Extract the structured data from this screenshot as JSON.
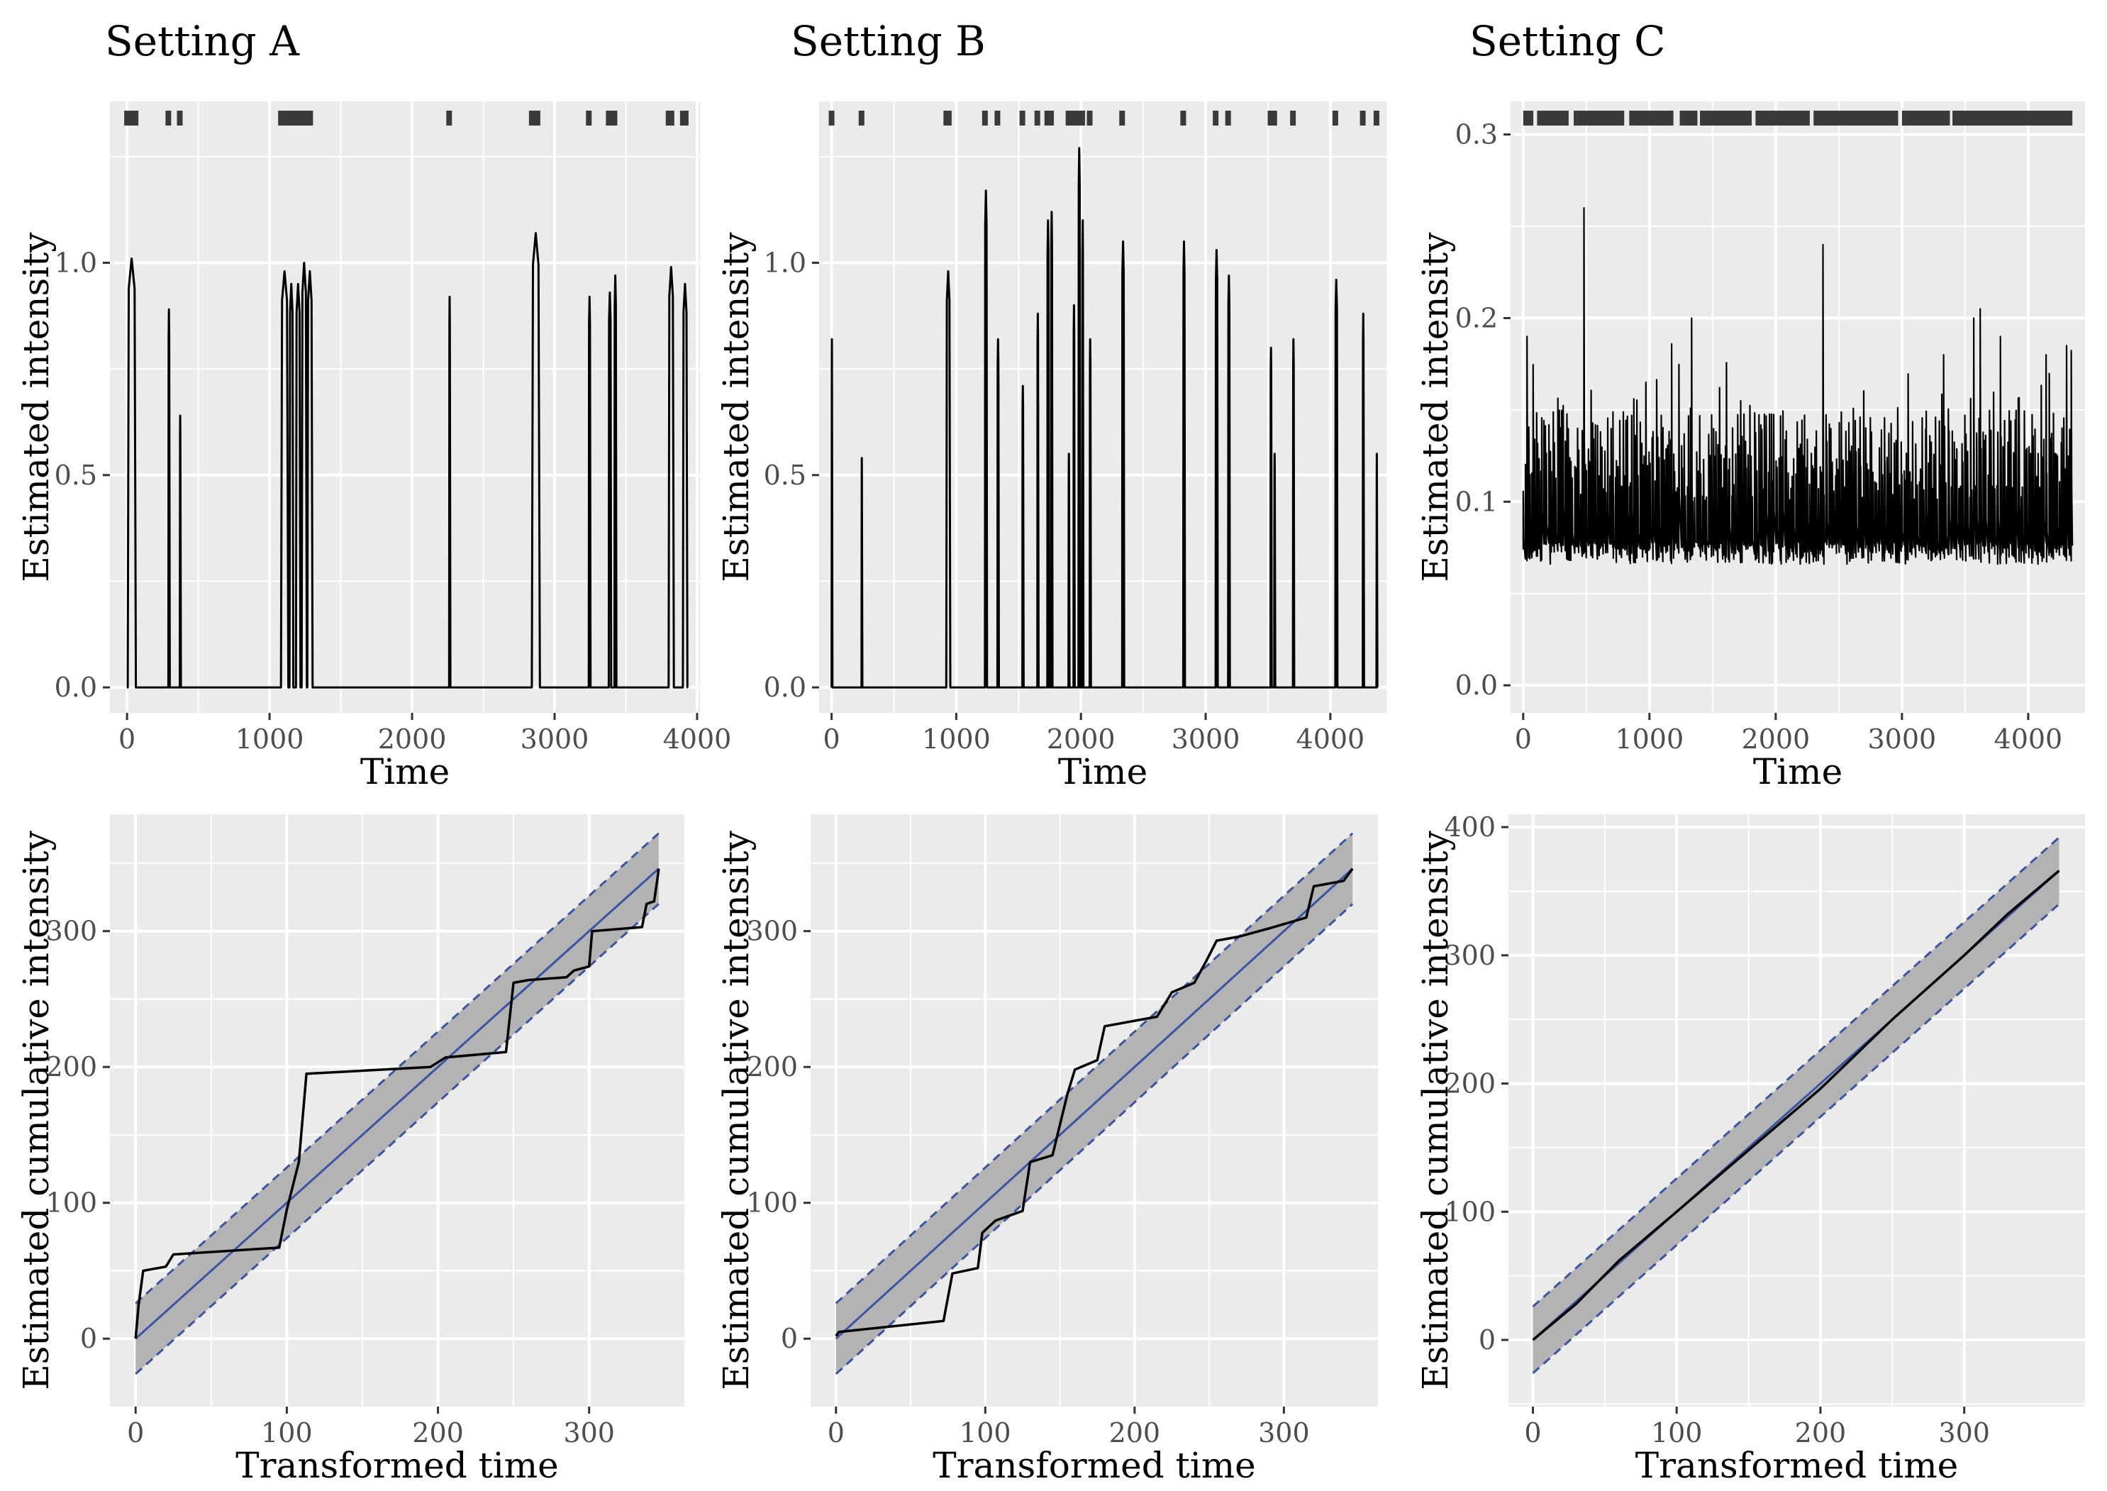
{
  "chart_data": [
    {
      "id": "A-intensity",
      "panel_title": "Setting A",
      "type": "line",
      "xlabel": "Time",
      "ylabel": "Estimated intensity",
      "xlim": [
        -120,
        4020
      ],
      "ylim": [
        -0.06,
        1.38
      ],
      "xticks": [
        0,
        1000,
        2000,
        3000,
        4000
      ],
      "xtick_labels": [
        "0",
        "1000",
        "2000",
        "3000",
        "4000"
      ],
      "yticks": [
        0,
        0.5,
        1.0
      ],
      "ytick_labels": [
        "0.0",
        "0.5",
        "1.0"
      ],
      "baseline": 0.0,
      "spikes": [
        {
          "t": 5,
          "w": 45,
          "h": 1.01,
          "dur": 55
        },
        {
          "t": 290,
          "w": 8,
          "h": 0.89,
          "dur": 8
        },
        {
          "t": 370,
          "w": 6,
          "h": 0.64,
          "dur": 6
        },
        {
          "t": 1080,
          "w": 50,
          "h": 0.98,
          "dur": 50
        },
        {
          "t": 1140,
          "w": 25,
          "h": 0.95,
          "dur": 25
        },
        {
          "t": 1185,
          "w": 30,
          "h": 0.95,
          "dur": 30
        },
        {
          "t": 1225,
          "w": 35,
          "h": 1.0,
          "dur": 35
        },
        {
          "t": 1265,
          "w": 35,
          "h": 0.98,
          "dur": 35
        },
        {
          "t": 2260,
          "w": 7,
          "h": 0.92,
          "dur": 7
        },
        {
          "t": 2840,
          "w": 55,
          "h": 1.07,
          "dur": 55
        },
        {
          "t": 3240,
          "w": 10,
          "h": 0.92,
          "dur": 10
        },
        {
          "t": 3380,
          "w": 15,
          "h": 0.93,
          "dur": 15
        },
        {
          "t": 3420,
          "w": 12,
          "h": 0.97,
          "dur": 12
        },
        {
          "t": 3800,
          "w": 35,
          "h": 0.99,
          "dur": 35
        },
        {
          "t": 3900,
          "w": 30,
          "h": 0.95,
          "dur": 30
        }
      ],
      "rug": [
        0,
        30,
        60,
        290,
        370,
        1080,
        1100,
        1120,
        1140,
        1160,
        1185,
        1205,
        1225,
        1245,
        1265,
        1285,
        2260,
        2840,
        2860,
        2880,
        3240,
        3380,
        3400,
        3420,
        3800,
        3820,
        3900,
        3920
      ]
    },
    {
      "id": "B-intensity",
      "panel_title": "Setting B",
      "type": "line",
      "xlabel": "Time",
      "ylabel": "Estimated intensity",
      "xlim": [
        -100,
        4450
      ],
      "ylim": [
        -0.06,
        1.38
      ],
      "xticks": [
        0,
        1000,
        2000,
        3000,
        4000
      ],
      "xtick_labels": [
        "0",
        "1000",
        "2000",
        "3000",
        "4000"
      ],
      "yticks": [
        0,
        0.5,
        1.0
      ],
      "ytick_labels": [
        "0.0",
        "0.5",
        "1.0"
      ],
      "baseline": 0.0,
      "spikes": [
        {
          "t": 0,
          "w": 5,
          "h": 0.82,
          "dur": 5
        },
        {
          "t": 240,
          "w": 5,
          "h": 0.54,
          "dur": 5
        },
        {
          "t": 920,
          "w": 30,
          "h": 0.98,
          "dur": 30
        },
        {
          "t": 1230,
          "w": 15,
          "h": 1.17,
          "dur": 15
        },
        {
          "t": 1330,
          "w": 10,
          "h": 0.82,
          "dur": 10
        },
        {
          "t": 1530,
          "w": 8,
          "h": 0.71,
          "dur": 8
        },
        {
          "t": 1650,
          "w": 8,
          "h": 0.88,
          "dur": 8
        },
        {
          "t": 1730,
          "w": 12,
          "h": 1.1,
          "dur": 12
        },
        {
          "t": 1760,
          "w": 10,
          "h": 1.12,
          "dur": 10
        },
        {
          "t": 1900,
          "w": 6,
          "h": 0.55,
          "dur": 6
        },
        {
          "t": 1940,
          "w": 8,
          "h": 0.9,
          "dur": 8
        },
        {
          "t": 1980,
          "w": 12,
          "h": 1.27,
          "dur": 12
        },
        {
          "t": 2010,
          "w": 8,
          "h": 1.1,
          "dur": 8
        },
        {
          "t": 2070,
          "w": 8,
          "h": 0.82,
          "dur": 8
        },
        {
          "t": 2330,
          "w": 15,
          "h": 1.05,
          "dur": 15
        },
        {
          "t": 2820,
          "w": 12,
          "h": 1.05,
          "dur": 12
        },
        {
          "t": 3080,
          "w": 15,
          "h": 1.03,
          "dur": 15
        },
        {
          "t": 3180,
          "w": 12,
          "h": 0.97,
          "dur": 12
        },
        {
          "t": 3520,
          "w": 8,
          "h": 0.8,
          "dur": 8
        },
        {
          "t": 3550,
          "w": 6,
          "h": 0.55,
          "dur": 6
        },
        {
          "t": 3700,
          "w": 8,
          "h": 0.82,
          "dur": 8
        },
        {
          "t": 4040,
          "w": 15,
          "h": 0.96,
          "dur": 15
        },
        {
          "t": 4260,
          "w": 8,
          "h": 0.88,
          "dur": 8
        },
        {
          "t": 4370,
          "w": 5,
          "h": 0.55,
          "dur": 5
        }
      ],
      "rug": [
        0,
        240,
        920,
        940,
        1230,
        1330,
        1530,
        1650,
        1730,
        1760,
        1900,
        1940,
        1980,
        2010,
        2070,
        2330,
        2820,
        3080,
        3180,
        3520,
        3550,
        3700,
        4040,
        4260,
        4370
      ]
    },
    {
      "id": "C-intensity",
      "panel_title": "Setting C",
      "type": "line",
      "xlabel": "Time",
      "ylabel": "Estimated intensity",
      "xlim": [
        -100,
        4450
      ],
      "ylim": [
        -0.015,
        0.318
      ],
      "xticks": [
        0,
        1000,
        2000,
        3000,
        4000
      ],
      "xtick_labels": [
        "0",
        "1000",
        "2000",
        "3000",
        "4000"
      ],
      "yticks": [
        0,
        0.1,
        0.2,
        0.3
      ],
      "ytick_labels": [
        "0.0",
        "0.1",
        "0.2",
        "0.3"
      ],
      "baseline": 0.066,
      "noise": {
        "start": 0,
        "end": 4350,
        "n_events": 360,
        "seed": 7
      },
      "peaks": [
        {
          "t": 30,
          "v": 0.19
        },
        {
          "t": 480,
          "v": 0.26
        },
        {
          "t": 1340,
          "v": 0.2
        },
        {
          "t": 2380,
          "v": 0.24
        },
        {
          "t": 3330,
          "v": 0.18
        },
        {
          "t": 3570,
          "v": 0.2
        },
        {
          "t": 3630,
          "v": 0.205
        },
        {
          "t": 3780,
          "v": 0.19
        },
        {
          "t": 4150,
          "v": 0.18
        },
        {
          "t": 4310,
          "v": 0.185
        }
      ],
      "rug_segments": [
        [
          0,
          80
        ],
        [
          110,
          360
        ],
        [
          400,
          800
        ],
        [
          840,
          1190
        ],
        [
          1240,
          1380
        ],
        [
          1400,
          1810
        ],
        [
          1840,
          2270
        ],
        [
          2300,
          2970
        ],
        [
          3000,
          3380
        ],
        [
          3400,
          4350
        ]
      ]
    },
    {
      "id": "A-cumulative",
      "type": "line",
      "xlabel": "Transformed time",
      "ylabel": "Estimated cumulative intensity",
      "xlim": [
        -17,
        363
      ],
      "ylim": [
        -50,
        386
      ],
      "xticks": [
        0,
        100,
        200,
        300
      ],
      "xtick_labels": [
        "0",
        "100",
        "200",
        "300"
      ],
      "yticks": [
        0,
        100,
        200,
        300
      ],
      "ytick_labels": [
        "0",
        "100",
        "200",
        "300"
      ],
      "x_max": 346,
      "band_halfwidth": 26,
      "points": [
        [
          0,
          0
        ],
        [
          2,
          25
        ],
        [
          5,
          50
        ],
        [
          20,
          53
        ],
        [
          25,
          62
        ],
        [
          95,
          67
        ],
        [
          100,
          95
        ],
        [
          108,
          130
        ],
        [
          113,
          195
        ],
        [
          195,
          200
        ],
        [
          205,
          207
        ],
        [
          245,
          211
        ],
        [
          250,
          262
        ],
        [
          260,
          264
        ],
        [
          285,
          266
        ],
        [
          290,
          271
        ],
        [
          300,
          274
        ],
        [
          302,
          300
        ],
        [
          335,
          303
        ],
        [
          338,
          320
        ],
        [
          343,
          322
        ],
        [
          345,
          337
        ],
        [
          346,
          346
        ]
      ]
    },
    {
      "id": "B-cumulative",
      "type": "line",
      "xlabel": "Transformed time",
      "ylabel": "Estimated cumulative intensity",
      "xlim": [
        -17,
        363
      ],
      "ylim": [
        -50,
        386
      ],
      "xticks": [
        0,
        100,
        200,
        300
      ],
      "xtick_labels": [
        "0",
        "100",
        "200",
        "300"
      ],
      "yticks": [
        0,
        100,
        200,
        300
      ],
      "ytick_labels": [
        "0",
        "100",
        "200",
        "300"
      ],
      "x_max": 346,
      "band_halfwidth": 26,
      "points": [
        [
          0,
          2
        ],
        [
          2,
          5
        ],
        [
          72,
          13
        ],
        [
          78,
          48
        ],
        [
          95,
          52
        ],
        [
          98,
          78
        ],
        [
          107,
          87
        ],
        [
          125,
          94
        ],
        [
          130,
          130
        ],
        [
          145,
          135
        ],
        [
          155,
          180
        ],
        [
          160,
          198
        ],
        [
          175,
          205
        ],
        [
          180,
          230
        ],
        [
          215,
          237
        ],
        [
          225,
          255
        ],
        [
          240,
          262
        ],
        [
          248,
          278
        ],
        [
          255,
          293
        ],
        [
          270,
          296
        ],
        [
          290,
          302
        ],
        [
          315,
          310
        ],
        [
          320,
          333
        ],
        [
          340,
          337
        ],
        [
          346,
          346
        ]
      ]
    },
    {
      "id": "C-cumulative",
      "type": "line",
      "xlabel": "Transformed time",
      "ylabel": "Estimated cumulative intensity",
      "xlim": [
        -17,
        384
      ],
      "ylim": [
        -52,
        410
      ],
      "xticks": [
        0,
        100,
        200,
        300
      ],
      "xtick_labels": [
        "0",
        "100",
        "200",
        "300"
      ],
      "yticks": [
        0,
        100,
        200,
        300,
        400
      ],
      "ytick_labels": [
        "0",
        "100",
        "200",
        "300",
        "400"
      ],
      "x_max": 366,
      "band_halfwidth": 26,
      "points": [
        [
          0,
          0
        ],
        [
          30,
          28
        ],
        [
          60,
          62
        ],
        [
          100,
          100
        ],
        [
          150,
          148
        ],
        [
          200,
          196
        ],
        [
          250,
          250
        ],
        [
          300,
          300
        ],
        [
          330,
          332
        ],
        [
          366,
          366
        ]
      ]
    }
  ],
  "colors": {
    "panel_bg": "#ebebeb",
    "grid": "#ffffff",
    "data_line": "#000000",
    "reference_line": "#3a54a4",
    "band_fill": "#b3b3b3",
    "rug": "#3a3a3a",
    "tick_text": "#4d4d4d"
  }
}
